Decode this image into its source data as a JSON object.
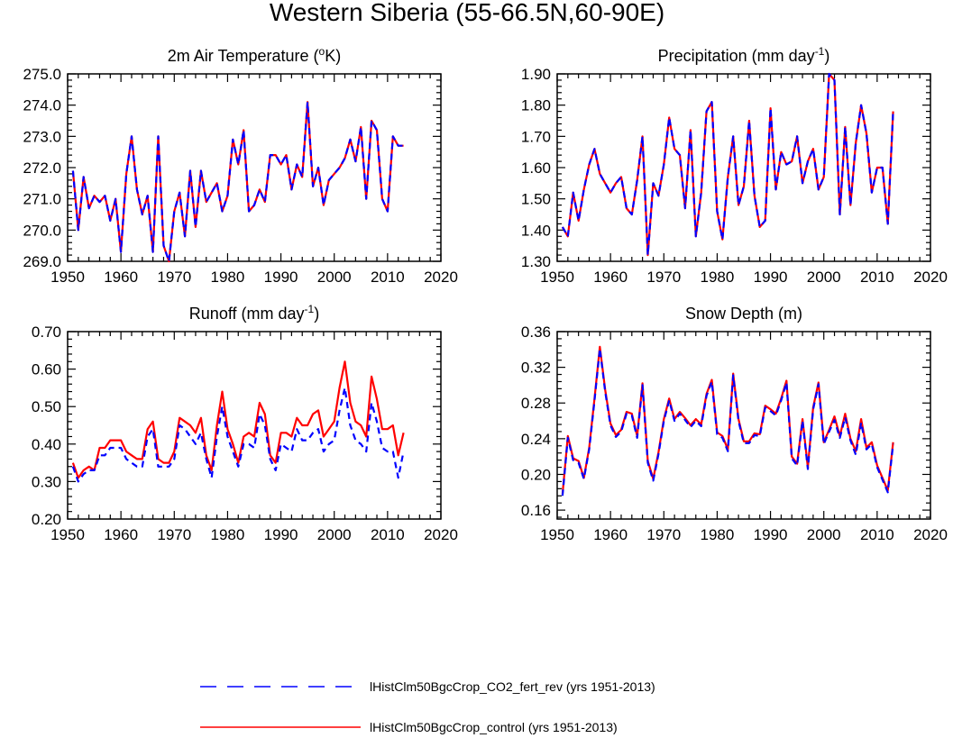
{
  "page": {
    "title": "Western Siberia (55-66.5N,60-90E)"
  },
  "legend": {
    "entries": [
      {
        "label": "lHistClm50BgcCrop_CO2_fert_rev (yrs 1951-2013)",
        "color": "#0000ff",
        "style": "dashed"
      },
      {
        "label": "lHistClm50BgcCrop_control (yrs 1951-2013)",
        "color": "#ff0000",
        "style": "solid"
      }
    ]
  },
  "chart_data": [
    {
      "type": "line",
      "title": "2m Air Temperature (",
      "title_sup": "o",
      "title_end": "K)",
      "xlabel": "",
      "ylabel": "",
      "xlim": [
        1950,
        2020
      ],
      "ylim": [
        269.0,
        275.0
      ],
      "xticks": [
        "1950",
        "1960",
        "1970",
        "1980",
        "1990",
        "2000",
        "2010",
        "2020"
      ],
      "yticks": [
        "269.0",
        "270.0",
        "271.0",
        "272.0",
        "273.0",
        "274.0",
        "275.0"
      ],
      "x": [
        1951,
        1952,
        1953,
        1954,
        1955,
        1956,
        1957,
        1958,
        1959,
        1960,
        1961,
        1962,
        1963,
        1964,
        1965,
        1966,
        1967,
        1968,
        1969,
        1970,
        1971,
        1972,
        1973,
        1974,
        1975,
        1976,
        1977,
        1978,
        1979,
        1980,
        1981,
        1982,
        1983,
        1984,
        1985,
        1986,
        1987,
        1988,
        1989,
        1990,
        1991,
        1992,
        1993,
        1994,
        1995,
        1996,
        1997,
        1998,
        1999,
        2000,
        2001,
        2002,
        2003,
        2004,
        2005,
        2006,
        2007,
        2008,
        2009,
        2010,
        2011,
        2012,
        2013
      ],
      "series": [
        {
          "name": "lHistClm50BgcCrop_control (yrs 1951-2013)",
          "color": "#ff0000",
          "dash": "none",
          "values": [
            271.9,
            270.0,
            271.7,
            270.7,
            271.1,
            270.9,
            271.1,
            270.3,
            271.0,
            269.3,
            271.8,
            273.0,
            271.3,
            270.5,
            271.1,
            269.3,
            273.0,
            269.5,
            269.0,
            270.6,
            271.2,
            269.8,
            271.9,
            270.1,
            271.9,
            270.9,
            271.2,
            271.5,
            270.6,
            271.1,
            272.9,
            272.1,
            273.2,
            270.6,
            270.8,
            271.3,
            270.9,
            272.4,
            272.4,
            272.1,
            272.4,
            271.3,
            272.1,
            271.7,
            274.1,
            271.4,
            272.0,
            270.8,
            271.6,
            271.8,
            272.0,
            272.3,
            272.9,
            272.2,
            273.3,
            271.0,
            273.5,
            273.2,
            271.0,
            270.6,
            273.0,
            272.7,
            272.7
          ]
        },
        {
          "name": "lHistClm50BgcCrop_CO2_fert_rev (yrs 1951-2013)",
          "color": "#0000ff",
          "dash": "7,5",
          "values": [
            271.9,
            270.0,
            271.7,
            270.7,
            271.1,
            270.9,
            271.1,
            270.3,
            271.0,
            269.3,
            271.8,
            273.0,
            271.3,
            270.5,
            271.1,
            269.3,
            273.0,
            269.5,
            269.0,
            270.6,
            271.2,
            269.8,
            271.9,
            270.1,
            271.9,
            270.9,
            271.2,
            271.5,
            270.6,
            271.1,
            272.9,
            272.1,
            273.2,
            270.6,
            270.8,
            271.3,
            270.9,
            272.4,
            272.4,
            272.1,
            272.4,
            271.3,
            272.1,
            271.7,
            274.1,
            271.4,
            272.0,
            270.8,
            271.6,
            271.8,
            272.0,
            272.3,
            272.9,
            272.2,
            273.3,
            271.0,
            273.5,
            273.2,
            271.0,
            270.6,
            273.0,
            272.7,
            272.7
          ]
        }
      ]
    },
    {
      "type": "line",
      "title": "Precipitation (mm day",
      "title_sup": "-1",
      "title_end": ")",
      "xlabel": "",
      "ylabel": "",
      "xlim": [
        1950,
        2020
      ],
      "ylim": [
        1.3,
        1.9
      ],
      "xticks": [
        "1950",
        "1960",
        "1970",
        "1980",
        "1990",
        "2000",
        "2010",
        "2020"
      ],
      "yticks": [
        "1.30",
        "1.40",
        "1.50",
        "1.60",
        "1.70",
        "1.80",
        "1.90"
      ],
      "x": [
        1951,
        1952,
        1953,
        1954,
        1955,
        1956,
        1957,
        1958,
        1959,
        1960,
        1961,
        1962,
        1963,
        1964,
        1965,
        1966,
        1967,
        1968,
        1969,
        1970,
        1971,
        1972,
        1973,
        1974,
        1975,
        1976,
        1977,
        1978,
        1979,
        1980,
        1981,
        1982,
        1983,
        1984,
        1985,
        1986,
        1987,
        1988,
        1989,
        1990,
        1991,
        1992,
        1993,
        1994,
        1995,
        1996,
        1997,
        1998,
        1999,
        2000,
        2001,
        2002,
        2003,
        2004,
        2005,
        2006,
        2007,
        2008,
        2009,
        2010,
        2011,
        2012,
        2013
      ],
      "series": [
        {
          "name": "lHistClm50BgcCrop_control (yrs 1951-2013)",
          "color": "#ff0000",
          "dash": "none",
          "values": [
            1.41,
            1.38,
            1.52,
            1.43,
            1.53,
            1.61,
            1.66,
            1.58,
            1.55,
            1.52,
            1.55,
            1.57,
            1.47,
            1.45,
            1.56,
            1.7,
            1.32,
            1.55,
            1.51,
            1.61,
            1.76,
            1.66,
            1.64,
            1.47,
            1.72,
            1.38,
            1.52,
            1.78,
            1.81,
            1.46,
            1.37,
            1.57,
            1.7,
            1.48,
            1.54,
            1.75,
            1.51,
            1.41,
            1.43,
            1.79,
            1.53,
            1.65,
            1.61,
            1.62,
            1.7,
            1.55,
            1.62,
            1.66,
            1.53,
            1.57,
            1.9,
            1.88,
            1.45,
            1.73,
            1.48,
            1.68,
            1.8,
            1.71,
            1.52,
            1.6,
            1.6,
            1.42,
            1.78
          ]
        },
        {
          "name": "lHistClm50BgcCrop_CO2_fert_rev (yrs 1951-2013)",
          "color": "#0000ff",
          "dash": "7,5",
          "values": [
            1.41,
            1.38,
            1.52,
            1.43,
            1.53,
            1.61,
            1.66,
            1.58,
            1.55,
            1.52,
            1.55,
            1.57,
            1.47,
            1.45,
            1.56,
            1.7,
            1.32,
            1.55,
            1.51,
            1.61,
            1.76,
            1.66,
            1.64,
            1.47,
            1.72,
            1.38,
            1.52,
            1.78,
            1.81,
            1.46,
            1.37,
            1.57,
            1.7,
            1.48,
            1.54,
            1.75,
            1.51,
            1.41,
            1.43,
            1.79,
            1.53,
            1.65,
            1.61,
            1.62,
            1.7,
            1.55,
            1.62,
            1.66,
            1.53,
            1.57,
            1.9,
            1.88,
            1.45,
            1.73,
            1.48,
            1.68,
            1.8,
            1.71,
            1.52,
            1.6,
            1.6,
            1.42,
            1.78
          ]
        }
      ]
    },
    {
      "type": "line",
      "title": "Runoff (mm day",
      "title_sup": "-1",
      "title_end": ")",
      "xlabel": "",
      "ylabel": "",
      "xlim": [
        1950,
        2020
      ],
      "ylim": [
        0.2,
        0.7
      ],
      "xticks": [
        "1950",
        "1960",
        "1970",
        "1980",
        "1990",
        "2000",
        "2010",
        "2020"
      ],
      "yticks": [
        "0.20",
        "0.30",
        "0.40",
        "0.50",
        "0.60",
        "0.70"
      ],
      "x": [
        1951,
        1952,
        1953,
        1954,
        1955,
        1956,
        1957,
        1958,
        1959,
        1960,
        1961,
        1962,
        1963,
        1964,
        1965,
        1966,
        1967,
        1968,
        1969,
        1970,
        1971,
        1972,
        1973,
        1974,
        1975,
        1976,
        1977,
        1978,
        1979,
        1980,
        1981,
        1982,
        1983,
        1984,
        1985,
        1986,
        1987,
        1988,
        1989,
        1990,
        1991,
        1992,
        1993,
        1994,
        1995,
        1996,
        1997,
        1998,
        1999,
        2000,
        2001,
        2002,
        2003,
        2004,
        2005,
        2006,
        2007,
        2008,
        2009,
        2010,
        2011,
        2012,
        2013
      ],
      "series": [
        {
          "name": "lHistClm50BgcCrop_control (yrs 1951-2013)",
          "color": "#ff0000",
          "dash": "none",
          "values": [
            0.35,
            0.31,
            0.33,
            0.34,
            0.33,
            0.39,
            0.39,
            0.41,
            0.41,
            0.41,
            0.38,
            0.37,
            0.36,
            0.36,
            0.44,
            0.46,
            0.36,
            0.35,
            0.35,
            0.38,
            0.47,
            0.46,
            0.45,
            0.43,
            0.47,
            0.37,
            0.33,
            0.45,
            0.54,
            0.44,
            0.4,
            0.35,
            0.42,
            0.43,
            0.42,
            0.51,
            0.48,
            0.37,
            0.35,
            0.43,
            0.43,
            0.42,
            0.47,
            0.45,
            0.45,
            0.48,
            0.49,
            0.42,
            0.44,
            0.46,
            0.55,
            0.62,
            0.51,
            0.46,
            0.45,
            0.42,
            0.58,
            0.52,
            0.44,
            0.44,
            0.45,
            0.37,
            0.43
          ]
        },
        {
          "name": "lHistClm50BgcCrop_CO2_fert_rev (yrs 1951-2013)",
          "color": "#0000ff",
          "dash": "7,5",
          "values": [
            0.34,
            0.3,
            0.32,
            0.33,
            0.33,
            0.37,
            0.37,
            0.39,
            0.39,
            0.39,
            0.36,
            0.35,
            0.34,
            0.34,
            0.42,
            0.44,
            0.34,
            0.34,
            0.34,
            0.36,
            0.45,
            0.44,
            0.42,
            0.4,
            0.43,
            0.36,
            0.31,
            0.42,
            0.5,
            0.42,
            0.38,
            0.34,
            0.4,
            0.4,
            0.39,
            0.48,
            0.45,
            0.36,
            0.33,
            0.4,
            0.39,
            0.38,
            0.44,
            0.41,
            0.41,
            0.43,
            0.44,
            0.38,
            0.4,
            0.41,
            0.49,
            0.55,
            0.45,
            0.41,
            0.4,
            0.38,
            0.51,
            0.46,
            0.39,
            0.38,
            0.38,
            0.31,
            0.38
          ]
        }
      ]
    },
    {
      "type": "line",
      "title": "Snow Depth (m)",
      "title_sup": "",
      "title_end": "",
      "xlabel": "",
      "ylabel": "",
      "xlim": [
        1950,
        2020
      ],
      "ylim": [
        0.15,
        0.36
      ],
      "xticks": [
        "1950",
        "1960",
        "1970",
        "1980",
        "1990",
        "2000",
        "2010",
        "2020"
      ],
      "yticks": [
        "0.16",
        "0.20",
        "0.24",
        "0.28",
        "0.32",
        "0.36"
      ],
      "x": [
        1951,
        1952,
        1953,
        1954,
        1955,
        1956,
        1957,
        1958,
        1959,
        1960,
        1961,
        1962,
        1963,
        1964,
        1965,
        1966,
        1967,
        1968,
        1969,
        1970,
        1971,
        1972,
        1973,
        1974,
        1975,
        1976,
        1977,
        1978,
        1979,
        1980,
        1981,
        1982,
        1983,
        1984,
        1985,
        1986,
        1987,
        1988,
        1989,
        1990,
        1991,
        1992,
        1993,
        1994,
        1995,
        1996,
        1997,
        1998,
        1999,
        2000,
        2001,
        2002,
        2003,
        2004,
        2005,
        2006,
        2007,
        2008,
        2009,
        2010,
        2011,
        2012,
        2013
      ],
      "series": [
        {
          "name": "lHistClm50BgcCrop_control (yrs 1951-2013)",
          "color": "#ff0000",
          "dash": "none",
          "values": [
            0.178,
            0.243,
            0.218,
            0.215,
            0.196,
            0.23,
            0.285,
            0.343,
            0.295,
            0.257,
            0.244,
            0.25,
            0.27,
            0.268,
            0.243,
            0.302,
            0.215,
            0.195,
            0.225,
            0.262,
            0.285,
            0.262,
            0.27,
            0.263,
            0.255,
            0.262,
            0.256,
            0.29,
            0.306,
            0.247,
            0.243,
            0.228,
            0.313,
            0.262,
            0.237,
            0.237,
            0.246,
            0.245,
            0.277,
            0.273,
            0.268,
            0.285,
            0.305,
            0.22,
            0.212,
            0.262,
            0.208,
            0.275,
            0.303,
            0.236,
            0.25,
            0.265,
            0.243,
            0.268,
            0.24,
            0.226,
            0.262,
            0.23,
            0.236,
            0.21,
            0.196,
            0.182,
            0.236
          ]
        },
        {
          "name": "lHistClm50BgcCrop_CO2_fert_rev (yrs 1951-2013)",
          "color": "#0000ff",
          "dash": "7,5",
          "values": [
            0.176,
            0.241,
            0.216,
            0.213,
            0.195,
            0.228,
            0.283,
            0.341,
            0.293,
            0.255,
            0.242,
            0.248,
            0.268,
            0.266,
            0.241,
            0.3,
            0.213,
            0.193,
            0.223,
            0.26,
            0.283,
            0.26,
            0.268,
            0.261,
            0.253,
            0.26,
            0.254,
            0.288,
            0.304,
            0.245,
            0.241,
            0.226,
            0.311,
            0.26,
            0.235,
            0.235,
            0.244,
            0.243,
            0.275,
            0.271,
            0.266,
            0.283,
            0.303,
            0.218,
            0.21,
            0.26,
            0.206,
            0.273,
            0.301,
            0.234,
            0.248,
            0.261,
            0.241,
            0.264,
            0.238,
            0.222,
            0.258,
            0.228,
            0.234,
            0.208,
            0.194,
            0.18,
            0.234
          ]
        }
      ]
    }
  ]
}
